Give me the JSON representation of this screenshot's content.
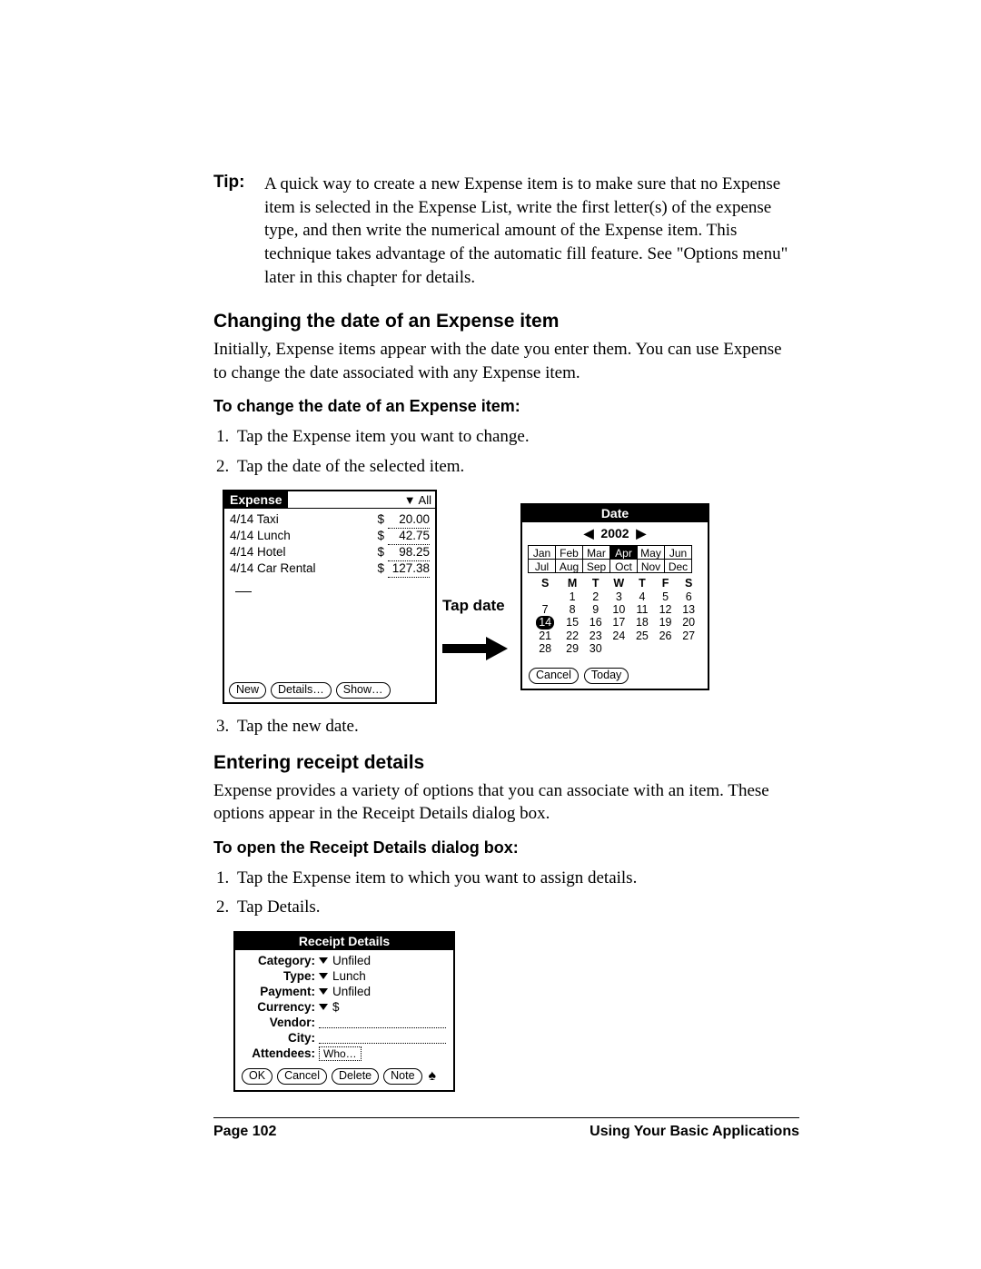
{
  "tip": {
    "label": "Tip:",
    "text": "A quick way to create a new Expense item is to make sure that no Expense item is selected in the Expense List, write the first letter(s) of the expense type, and then write the numerical amount of the Expense item. This technique takes advantage of the automatic fill feature. See \"Options menu\" later in this chapter for details."
  },
  "heading1": "Changing the date of an Expense item",
  "para1": "Initially, Expense items appear with the date you enter them. You can use Expense to change the date associated with any Expense item.",
  "subheading1": "To change the date of an Expense item:",
  "steps1": {
    "s1": "Tap the Expense item you want to change.",
    "s2": "Tap the date of the selected item.",
    "s3": "Tap the new date."
  },
  "expense_screen": {
    "title": "Expense",
    "filter": "▼ All",
    "rows": [
      {
        "label": "4/14 Taxi",
        "cur": "$",
        "amt": "20.00"
      },
      {
        "label": "4/14 Lunch",
        "cur": "$",
        "amt": "42.75"
      },
      {
        "label": "4/14 Hotel",
        "cur": "$",
        "amt": "98.25"
      },
      {
        "label": "4/14 Car Rental",
        "cur": "$",
        "amt": "127.38"
      }
    ],
    "buttons": {
      "new": "New",
      "details": "Details…",
      "show": "Show…"
    }
  },
  "tap_date_label": "Tap date",
  "date_screen": {
    "title": "Date",
    "year": "2002",
    "months_row1": [
      "Jan",
      "Feb",
      "Mar",
      "Apr",
      "May",
      "Jun"
    ],
    "months_row2": [
      "Jul",
      "Aug",
      "Sep",
      "Oct",
      "Nov",
      "Dec"
    ],
    "selected_month": "Apr",
    "dow": [
      "S",
      "M",
      "T",
      "W",
      "T",
      "F",
      "S"
    ],
    "weeks": [
      [
        "",
        "1",
        "2",
        "3",
        "4",
        "5",
        "6"
      ],
      [
        "7",
        "8",
        "9",
        "10",
        "11",
        "12",
        "13"
      ],
      [
        "14",
        "15",
        "16",
        "17",
        "18",
        "19",
        "20"
      ],
      [
        "21",
        "22",
        "23",
        "24",
        "25",
        "26",
        "27"
      ],
      [
        "28",
        "29",
        "30",
        "",
        "",
        "",
        ""
      ]
    ],
    "selected_day": "14",
    "buttons": {
      "cancel": "Cancel",
      "today": "Today"
    }
  },
  "heading2": "Entering receipt details",
  "para2": "Expense provides a variety of options that you can associate with an item. These options appear in the Receipt Details dialog box.",
  "subheading2": "To open the Receipt Details dialog box:",
  "steps2": {
    "s1": "Tap the Expense item to which you want to assign details.",
    "s2": "Tap Details."
  },
  "receipt": {
    "title": "Receipt Details",
    "labels": {
      "category": "Category:",
      "type": "Type:",
      "payment": "Payment:",
      "currency": "Currency:",
      "vendor": "Vendor:",
      "city": "City:",
      "attendees": "Attendees:"
    },
    "values": {
      "category": "Unfiled",
      "type": "Lunch",
      "payment": "Unfiled",
      "currency": "$",
      "attendees": "Who…"
    },
    "buttons": {
      "ok": "OK",
      "cancel": "Cancel",
      "delete": "Delete",
      "note": "Note"
    }
  },
  "footer": {
    "left": "Page 102",
    "right": "Using Your Basic Applications"
  }
}
